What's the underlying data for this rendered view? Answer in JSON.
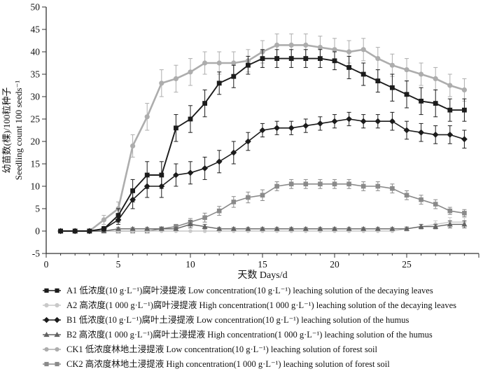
{
  "chart_data": {
    "type": "line",
    "title": "",
    "xlabel": "天数 Days/d",
    "ylabel_cn": "幼苗数(棵)/100粒种子",
    "ylabel_en": "Seedling count 100 seeds⁻¹",
    "xlim": [
      0,
      30
    ],
    "ylim": [
      -5,
      50
    ],
    "xticks": [
      0,
      5,
      10,
      15,
      20,
      25
    ],
    "yticks": [
      -5,
      0,
      5,
      10,
      15,
      20,
      25,
      30,
      35,
      40,
      45,
      50
    ],
    "grid": false,
    "legend_position": "below",
    "x": [
      1,
      2,
      3,
      4,
      5,
      6,
      7,
      8,
      9,
      10,
      11,
      12,
      13,
      14,
      15,
      16,
      17,
      18,
      19,
      20,
      21,
      22,
      23,
      24,
      25,
      26,
      27,
      28,
      29
    ],
    "series": [
      {
        "name": "A1",
        "marker": "square",
        "color": "#1c1c1c",
        "legend": "A1 低浓度(10 g·L⁻¹)腐叶浸提液 Low concentration(10 g·L⁻¹) leaching solution of the decaying leaves",
        "values": [
          0,
          0,
          0,
          0.5,
          3.5,
          9,
          12.5,
          12.5,
          23,
          25,
          28.5,
          33,
          34.5,
          37,
          38.5,
          38.5,
          38.5,
          38.5,
          38.5,
          38,
          36.5,
          35,
          33.5,
          32,
          30.5,
          29,
          28.5,
          27,
          27
        ],
        "errors": [
          0.2,
          0.2,
          0.2,
          0.5,
          1.5,
          2.5,
          3,
          3,
          3,
          3,
          3,
          2.5,
          2.5,
          2,
          2,
          2,
          2,
          2,
          2,
          2,
          2.5,
          2.5,
          2.5,
          3,
          3,
          3,
          3,
          2.5,
          2.5
        ]
      },
      {
        "name": "A2",
        "marker": "circle",
        "color": "#c9c9c9",
        "legend": "A2 高浓度(1 000 g·L⁻¹)腐叶浸提液 High concentration(1 000 g·L⁻¹) leaching solution of the decaying leaves",
        "values": [
          0,
          0,
          0,
          0,
          0,
          0,
          0,
          0,
          0,
          0,
          0,
          0,
          0,
          0,
          0,
          0,
          0,
          0,
          0,
          0,
          0,
          0,
          0,
          0,
          0.5,
          1,
          1.5,
          2,
          2
        ],
        "errors": [
          0.2,
          0.2,
          0.2,
          0.2,
          0.2,
          0.2,
          0.2,
          0.2,
          0.2,
          0.2,
          0.2,
          0.2,
          0.2,
          0.2,
          0.2,
          0.2,
          0.2,
          0.2,
          0.2,
          0.2,
          0.2,
          0.2,
          0.2,
          0.2,
          0.5,
          0.5,
          0.8,
          1,
          1
        ]
      },
      {
        "name": "B1",
        "marker": "diamond",
        "color": "#1c1c1c",
        "legend": "B1 低浓度(10 g·L⁻¹)腐叶土浸提液 Low concentration(10 g·L⁻¹) leaching solution of the humus",
        "values": [
          0,
          0,
          0,
          0.5,
          2.5,
          7,
          10,
          10,
          12.5,
          13,
          14,
          15.5,
          17.5,
          20,
          22.5,
          23,
          23,
          23.5,
          24,
          24.5,
          25,
          24.5,
          24.5,
          24.5,
          22.5,
          22,
          21.5,
          21.5,
          20.5
        ],
        "errors": [
          0.2,
          0.2,
          0.2,
          0.5,
          1,
          2,
          2.5,
          2.5,
          2.5,
          2.5,
          2.5,
          2.5,
          2.5,
          2,
          1.5,
          1.5,
          1.5,
          1.5,
          1.5,
          1.5,
          1.5,
          1.5,
          1.5,
          2,
          2,
          2,
          2,
          2,
          2
        ]
      },
      {
        "name": "B2",
        "marker": "triangle",
        "color": "#636363",
        "legend": "B2 高浓度(1 000 g·L⁻¹)腐叶土浸提液 High concentration(1 000 g·L⁻¹) leaching solution of the humus",
        "values": [
          0,
          0,
          0,
          0,
          0.5,
          0.5,
          0.5,
          0.5,
          0.5,
          1.5,
          1,
          0.5,
          0.5,
          0.5,
          0.5,
          0.5,
          0.5,
          0.5,
          0.5,
          0.5,
          0.5,
          0.5,
          0.5,
          0.5,
          0.5,
          1,
          1,
          1.5,
          1.5
        ],
        "errors": [
          0.2,
          0.2,
          0.2,
          0.2,
          0.3,
          0.3,
          0.3,
          0.3,
          0.3,
          0.8,
          0.5,
          0.3,
          0.3,
          0.3,
          0.3,
          0.3,
          0.3,
          0.3,
          0.3,
          0.3,
          0.3,
          0.3,
          0.3,
          0.3,
          0.3,
          0.5,
          0.5,
          0.8,
          0.8
        ]
      },
      {
        "name": "CK1",
        "marker": "circle",
        "color": "#adadad",
        "legend": "CK1 低浓度林地土浸提液 Low concentration(10 g·L⁻¹) leaching solution of forest soil",
        "values": [
          0,
          0,
          0,
          2.5,
          5,
          19,
          25.5,
          33,
          34,
          35.5,
          37.5,
          37.5,
          37.5,
          38,
          40,
          41.5,
          41.5,
          41.5,
          41,
          40.5,
          40,
          40.5,
          38.5,
          37,
          36,
          35,
          34,
          32.5,
          31.5
        ],
        "errors": [
          0.2,
          0.2,
          0.2,
          1,
          1.5,
          2.5,
          3,
          3,
          3,
          3,
          2.5,
          2.5,
          2.5,
          2.5,
          2.5,
          2.5,
          2.5,
          2.5,
          2.5,
          2.5,
          2.5,
          2.5,
          2.5,
          2.5,
          2.5,
          2.5,
          2.5,
          2.5,
          2.5
        ]
      },
      {
        "name": "CK2",
        "marker": "square",
        "color": "#8a8a8a",
        "legend": "CK2 高浓度林地土浸提液 High concentration(1 000 g·L⁻¹) leaching solution of forest soil",
        "values": [
          0,
          0,
          0,
          0,
          0,
          0,
          0,
          0.5,
          1,
          2,
          3,
          4.5,
          6.5,
          7.5,
          8,
          10,
          10.5,
          10.5,
          10.5,
          10.5,
          10.5,
          10,
          10,
          9.5,
          8,
          7,
          6,
          4.5,
          4
        ],
        "errors": [
          0.2,
          0.2,
          0.2,
          0.2,
          0.2,
          0.2,
          0.2,
          0.3,
          0.5,
          0.8,
          1,
          1,
          1.2,
          1.2,
          1.2,
          1,
          1,
          1,
          1,
          1,
          1,
          1,
          1,
          1,
          1,
          1,
          1,
          0.8,
          0.8
        ]
      }
    ]
  }
}
